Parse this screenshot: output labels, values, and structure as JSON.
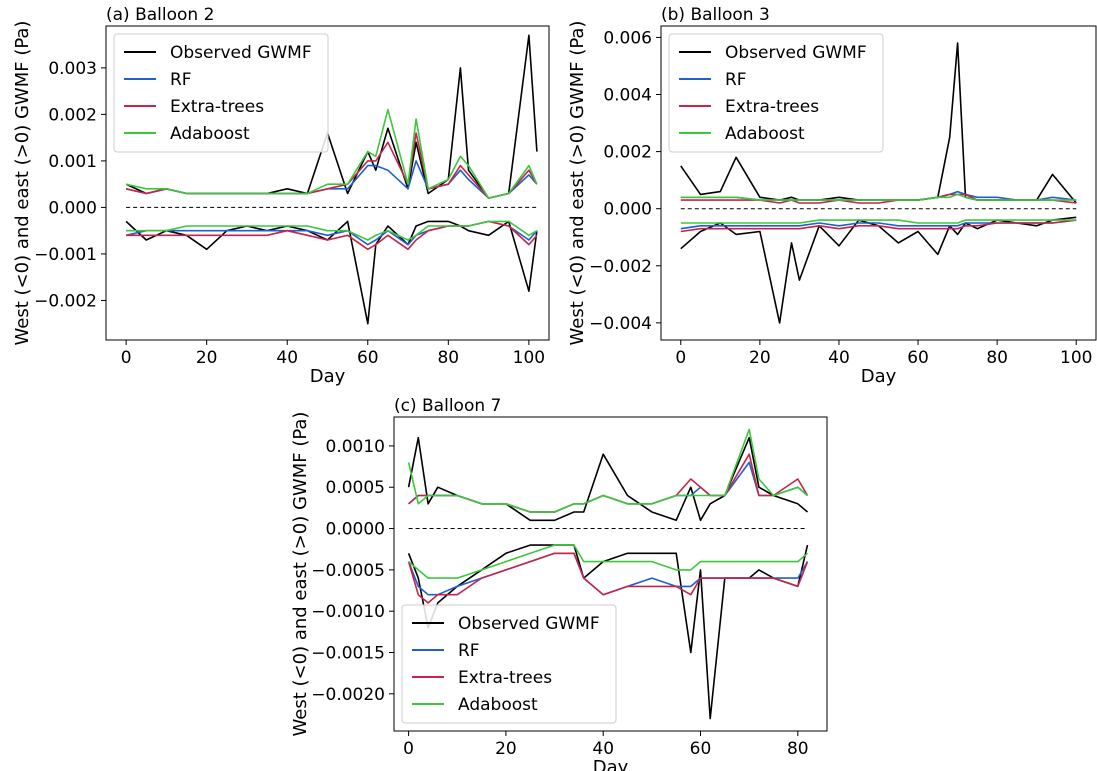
{
  "chart_data": [
    {
      "type": "line",
      "title": "(a) Balloon 2",
      "xlabel": "Day",
      "ylabel": "West (<0) and east (>0) GWMF (Pa)",
      "xlim": [
        -5,
        105
      ],
      "ylim": [
        -0.00285,
        0.0039
      ],
      "xticks": [
        0,
        20,
        40,
        60,
        80,
        100
      ],
      "yticks": [
        -0.002,
        -0.001,
        0.0,
        0.001,
        0.002,
        0.003
      ],
      "ytick_labels": [
        "−0.002",
        "−0.001",
        "0.000",
        "0.001",
        "0.002",
        "0.003"
      ],
      "zero_line": true,
      "legend_position": "top-left",
      "x": [
        0,
        5,
        10,
        15,
        20,
        25,
        30,
        35,
        40,
        45,
        50,
        55,
        60,
        62,
        65,
        70,
        72,
        75,
        80,
        83,
        85,
        90,
        95,
        100,
        102
      ],
      "series": [
        {
          "name": "Observed GWMF",
          "color": "#000000",
          "values": [
            0.0005,
            0.0003,
            0.0004,
            0.0003,
            0.0003,
            0.0003,
            0.0003,
            0.0003,
            0.0004,
            0.0003,
            0.0016,
            0.0003,
            0.0012,
            0.0008,
            0.0017,
            0.0004,
            0.0014,
            0.0003,
            0.0006,
            0.003,
            0.0008,
            0.0002,
            0.0003,
            0.0037,
            0.0012
          ]
        },
        {
          "name": "RF",
          "color": "#1f5fd1",
          "values": [
            0.0004,
            0.0003,
            0.0004,
            0.0003,
            0.0003,
            0.0003,
            0.0003,
            0.0003,
            0.0003,
            0.0003,
            0.0004,
            0.0004,
            0.0009,
            0.0009,
            0.0008,
            0.0004,
            0.001,
            0.0004,
            0.0005,
            0.0008,
            0.0006,
            0.0002,
            0.0003,
            0.0007,
            0.0005
          ]
        },
        {
          "name": "Extra-trees",
          "color": "#c8234a",
          "values": [
            0.0004,
            0.0003,
            0.0004,
            0.0003,
            0.0003,
            0.0003,
            0.0003,
            0.0003,
            0.0003,
            0.0003,
            0.0004,
            0.0005,
            0.001,
            0.001,
            0.0014,
            0.0005,
            0.0016,
            0.0004,
            0.0005,
            0.0009,
            0.0007,
            0.0002,
            0.0003,
            0.0008,
            0.0005
          ]
        },
        {
          "name": "Adaboost",
          "color": "#3cc83c",
          "values": [
            0.0005,
            0.0004,
            0.0004,
            0.0003,
            0.0003,
            0.0003,
            0.0003,
            0.0003,
            0.0003,
            0.0003,
            0.0005,
            0.0005,
            0.0012,
            0.0011,
            0.0021,
            0.0005,
            0.0019,
            0.0004,
            0.0006,
            0.0011,
            0.0009,
            0.0002,
            0.0003,
            0.0009,
            0.0005
          ]
        },
        {
          "name": "Observed GWMF",
          "color": "#000000",
          "values": [
            -0.0003,
            -0.0007,
            -0.0005,
            -0.0006,
            -0.0009,
            -0.0005,
            -0.0004,
            -0.0005,
            -0.0004,
            -0.0005,
            -0.0007,
            -0.0003,
            -0.0025,
            -0.0008,
            -0.0004,
            -0.0008,
            -0.0004,
            -0.0003,
            -0.0003,
            -0.0004,
            -0.0005,
            -0.0006,
            -0.0003,
            -0.0018,
            -0.0005
          ]
        },
        {
          "name": "RF",
          "color": "#1f5fd1",
          "values": [
            -0.0006,
            -0.0005,
            -0.0005,
            -0.0005,
            -0.0005,
            -0.0005,
            -0.0005,
            -0.0005,
            -0.0005,
            -0.0005,
            -0.0006,
            -0.0005,
            -0.0008,
            -0.0007,
            -0.0005,
            -0.0008,
            -0.0006,
            -0.0005,
            -0.0004,
            -0.0004,
            -0.0004,
            -0.0003,
            -0.0004,
            -0.0007,
            -0.0005
          ]
        },
        {
          "name": "Extra-trees",
          "color": "#c8234a",
          "values": [
            -0.0006,
            -0.0006,
            -0.0006,
            -0.0006,
            -0.0006,
            -0.0006,
            -0.0006,
            -0.0006,
            -0.0005,
            -0.0006,
            -0.0007,
            -0.0006,
            -0.0009,
            -0.0008,
            -0.0006,
            -0.0009,
            -0.0007,
            -0.0005,
            -0.0004,
            -0.0004,
            -0.0004,
            -0.0003,
            -0.0004,
            -0.0008,
            -0.0006
          ]
        },
        {
          "name": "Adaboost",
          "color": "#3cc83c",
          "values": [
            -0.0005,
            -0.0005,
            -0.0005,
            -0.0004,
            -0.0004,
            -0.0004,
            -0.0004,
            -0.0004,
            -0.0004,
            -0.0004,
            -0.0005,
            -0.0005,
            -0.0007,
            -0.0006,
            -0.0005,
            -0.0007,
            -0.0006,
            -0.0004,
            -0.0004,
            -0.0004,
            -0.0004,
            -0.0003,
            -0.0003,
            -0.0006,
            -0.0005
          ]
        }
      ]
    },
    {
      "type": "line",
      "title": "(b) Balloon 3",
      "xlabel": "Day",
      "ylabel": "West (<0) and east (>0) GWMF (Pa)",
      "xlim": [
        -5,
        105
      ],
      "ylim": [
        -0.0046,
        0.0064
      ],
      "xticks": [
        0,
        20,
        40,
        60,
        80,
        100
      ],
      "yticks": [
        -0.004,
        -0.002,
        0.0,
        0.002,
        0.004,
        0.006
      ],
      "ytick_labels": [
        "−0.004",
        "−0.002",
        "0.000",
        "0.002",
        "0.004",
        "0.006"
      ],
      "zero_line": true,
      "legend_position": "top-left",
      "x": [
        0,
        5,
        10,
        14,
        20,
        25,
        28,
        30,
        35,
        40,
        45,
        50,
        55,
        60,
        65,
        68,
        70,
        72,
        75,
        80,
        85,
        90,
        94,
        100
      ],
      "series": [
        {
          "name": "Observed GWMF",
          "color": "#000000",
          "values": [
            0.0015,
            0.0005,
            0.0006,
            0.0018,
            0.0004,
            0.0003,
            0.0004,
            0.0003,
            0.0003,
            0.0004,
            0.0003,
            0.0003,
            0.0003,
            0.0003,
            0.0004,
            0.0025,
            0.0058,
            0.0004,
            0.0003,
            0.0003,
            0.0003,
            0.0003,
            0.0012,
            0.0002
          ]
        },
        {
          "name": "RF",
          "color": "#1f5fd1",
          "values": [
            0.0004,
            0.0004,
            0.0004,
            0.0004,
            0.0003,
            0.0003,
            0.0003,
            0.0003,
            0.0003,
            0.0003,
            0.0003,
            0.0003,
            0.0003,
            0.0003,
            0.0004,
            0.0005,
            0.0006,
            0.0005,
            0.0004,
            0.0004,
            0.0003,
            0.0003,
            0.0004,
            0.0003
          ]
        },
        {
          "name": "Extra-trees",
          "color": "#c8234a",
          "values": [
            0.0003,
            0.0003,
            0.0003,
            0.0003,
            0.0003,
            0.0002,
            0.0003,
            0.0002,
            0.0002,
            0.0003,
            0.0002,
            0.0002,
            0.0003,
            0.0003,
            0.0004,
            0.0005,
            0.0005,
            0.0005,
            0.0003,
            0.0003,
            0.0003,
            0.0003,
            0.0003,
            0.0002
          ]
        },
        {
          "name": "Adaboost",
          "color": "#3cc83c",
          "values": [
            0.0004,
            0.0004,
            0.0004,
            0.0004,
            0.0003,
            0.0003,
            0.0003,
            0.0003,
            0.0003,
            0.0003,
            0.0003,
            0.0003,
            0.0003,
            0.0003,
            0.0004,
            0.0004,
            0.0005,
            0.0004,
            0.0003,
            0.0003,
            0.0003,
            0.0003,
            0.0003,
            0.0003
          ]
        },
        {
          "name": "Observed GWMF",
          "color": "#000000",
          "values": [
            -0.0014,
            -0.0008,
            -0.0005,
            -0.0009,
            -0.0008,
            -0.004,
            -0.0012,
            -0.0025,
            -0.0006,
            -0.0013,
            -0.0004,
            -0.0006,
            -0.0012,
            -0.0008,
            -0.0016,
            -0.0006,
            -0.0009,
            -0.0005,
            -0.0007,
            -0.0004,
            -0.0005,
            -0.0006,
            -0.0004,
            -0.0003
          ]
        },
        {
          "name": "RF",
          "color": "#1f5fd1",
          "values": [
            -0.0007,
            -0.0006,
            -0.0006,
            -0.0006,
            -0.0006,
            -0.0006,
            -0.0006,
            -0.0006,
            -0.0005,
            -0.0006,
            -0.0005,
            -0.0005,
            -0.0006,
            -0.0006,
            -0.0006,
            -0.0006,
            -0.0006,
            -0.0005,
            -0.0005,
            -0.0005,
            -0.0005,
            -0.0005,
            -0.0005,
            -0.0004
          ]
        },
        {
          "name": "Extra-trees",
          "color": "#c8234a",
          "values": [
            -0.0008,
            -0.0007,
            -0.0007,
            -0.0007,
            -0.0007,
            -0.0007,
            -0.0007,
            -0.0007,
            -0.0006,
            -0.0007,
            -0.0006,
            -0.0006,
            -0.0007,
            -0.0007,
            -0.0007,
            -0.0007,
            -0.0007,
            -0.0006,
            -0.0006,
            -0.0005,
            -0.0005,
            -0.0005,
            -0.0005,
            -0.0004
          ]
        },
        {
          "name": "Adaboost",
          "color": "#3cc83c",
          "values": [
            -0.0005,
            -0.0005,
            -0.0005,
            -0.0005,
            -0.0005,
            -0.0005,
            -0.0005,
            -0.0005,
            -0.0004,
            -0.0004,
            -0.0004,
            -0.0004,
            -0.0004,
            -0.0005,
            -0.0005,
            -0.0005,
            -0.0005,
            -0.0004,
            -0.0004,
            -0.0004,
            -0.0004,
            -0.0004,
            -0.0004,
            -0.0004
          ]
        }
      ]
    },
    {
      "type": "line",
      "title": "(c) Balloon 7",
      "xlabel": "Day",
      "ylabel": "West (<0) and east (>0) GWMF (Pa)",
      "xlim": [
        -3,
        86
      ],
      "ylim": [
        -0.00245,
        0.00135
      ],
      "xticks": [
        0,
        20,
        40,
        60,
        80
      ],
      "yticks": [
        -0.002,
        -0.0015,
        -0.001,
        -0.0005,
        0.0,
        0.0005,
        0.001
      ],
      "ytick_labels": [
        "−0.0020",
        "−0.0015",
        "−0.0010",
        "−0.0005",
        "0.0000",
        "0.0005",
        "0.0010"
      ],
      "zero_line": true,
      "legend_position": "lower-left",
      "x": [
        0,
        2,
        4,
        6,
        10,
        15,
        20,
        25,
        30,
        34,
        36,
        40,
        45,
        50,
        55,
        58,
        60,
        62,
        65,
        70,
        72,
        75,
        80,
        82
      ],
      "series": [
        {
          "name": "Observed GWMF",
          "color": "#000000",
          "values": [
            0.0005,
            0.0011,
            0.0003,
            0.0005,
            0.0004,
            0.0003,
            0.0003,
            0.0001,
            0.0001,
            0.0002,
            0.0002,
            0.0009,
            0.0004,
            0.0002,
            0.0001,
            0.0005,
            0.0001,
            0.0003,
            0.0004,
            0.0011,
            0.0005,
            0.0004,
            0.0003,
            0.0002
          ]
        },
        {
          "name": "RF",
          "color": "#1f5fd1",
          "values": [
            0.0003,
            0.0004,
            0.0004,
            0.0004,
            0.0004,
            0.0003,
            0.0003,
            0.0002,
            0.0002,
            0.0003,
            0.0003,
            0.0004,
            0.0003,
            0.0003,
            0.0004,
            0.0004,
            0.0005,
            0.0004,
            0.0004,
            0.0008,
            0.0004,
            0.0004,
            0.0005,
            0.0004
          ]
        },
        {
          "name": "Extra-trees",
          "color": "#c8234a",
          "values": [
            0.0003,
            0.0004,
            0.0004,
            0.0004,
            0.0004,
            0.0003,
            0.0003,
            0.0002,
            0.0002,
            0.0003,
            0.0003,
            0.0004,
            0.0003,
            0.0003,
            0.0004,
            0.0006,
            0.0005,
            0.0004,
            0.0004,
            0.0009,
            0.0004,
            0.0004,
            0.0006,
            0.0004
          ]
        },
        {
          "name": "Adaboost",
          "color": "#3cc83c",
          "values": [
            0.0008,
            0.0003,
            0.0004,
            0.0004,
            0.0004,
            0.0003,
            0.0003,
            0.0002,
            0.0002,
            0.0003,
            0.0003,
            0.0004,
            0.0003,
            0.0003,
            0.0004,
            0.0004,
            0.0004,
            0.0004,
            0.0004,
            0.0012,
            0.0006,
            0.0004,
            0.0005,
            0.0004
          ]
        },
        {
          "name": "Observed GWMF",
          "color": "#000000",
          "values": [
            -0.0003,
            -0.0006,
            -0.0012,
            -0.0009,
            -0.0007,
            -0.0005,
            -0.0003,
            -0.0002,
            -0.0002,
            -0.0002,
            -0.0006,
            -0.0004,
            -0.0003,
            -0.0003,
            -0.0003,
            -0.0015,
            -0.0005,
            -0.0023,
            -0.0006,
            -0.0006,
            -0.0005,
            -0.0006,
            -0.0007,
            -0.0002
          ]
        },
        {
          "name": "RF",
          "color": "#1f5fd1",
          "values": [
            -0.0004,
            -0.0007,
            -0.0008,
            -0.0008,
            -0.0007,
            -0.0006,
            -0.0005,
            -0.0004,
            -0.0003,
            -0.0003,
            -0.0006,
            -0.0008,
            -0.0007,
            -0.0006,
            -0.0007,
            -0.0007,
            -0.0006,
            -0.0006,
            -0.0006,
            -0.0006,
            -0.0006,
            -0.0006,
            -0.0006,
            -0.0004
          ]
        },
        {
          "name": "Extra-trees",
          "color": "#c8234a",
          "values": [
            -0.0004,
            -0.0008,
            -0.0009,
            -0.0008,
            -0.0008,
            -0.0006,
            -0.0005,
            -0.0004,
            -0.0003,
            -0.0003,
            -0.0006,
            -0.0008,
            -0.0007,
            -0.0007,
            -0.0007,
            -0.0008,
            -0.0006,
            -0.0006,
            -0.0006,
            -0.0006,
            -0.0006,
            -0.0006,
            -0.0007,
            -0.0004
          ]
        },
        {
          "name": "Adaboost",
          "color": "#3cc83c",
          "values": [
            -0.0004,
            -0.0005,
            -0.0006,
            -0.0006,
            -0.0006,
            -0.0005,
            -0.0004,
            -0.0003,
            -0.0002,
            -0.0002,
            -0.0004,
            -0.0004,
            -0.0004,
            -0.0004,
            -0.0005,
            -0.0005,
            -0.0004,
            -0.0004,
            -0.0004,
            -0.0004,
            -0.0004,
            -0.0004,
            -0.0004,
            -0.0003
          ]
        }
      ]
    }
  ]
}
